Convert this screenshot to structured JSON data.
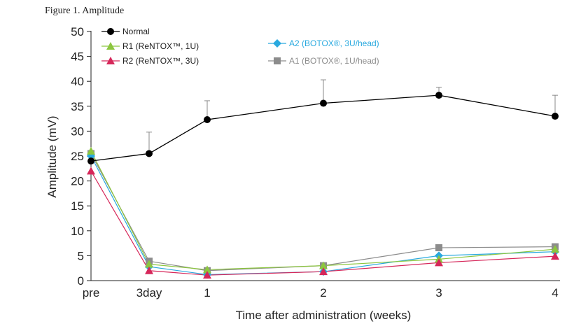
{
  "figure_title": "Figure 1. Amplitude",
  "chart_data": {
    "type": "line",
    "title": "",
    "xlabel": "Time after administration (weeks)",
    "ylabel": "Amplitude (mV)",
    "categories": [
      "pre",
      "3day",
      "1",
      "2",
      "3",
      "4"
    ],
    "ylim": [
      0,
      50
    ],
    "yticks": [
      0,
      5,
      10,
      15,
      20,
      25,
      30,
      35,
      40,
      45,
      50
    ],
    "grid": false,
    "series": [
      {
        "name": "Normal",
        "color": "#000000",
        "marker": "circle",
        "values": [
          24,
          25.5,
          32.3,
          35.6,
          37.2,
          33
        ],
        "error_upper": [
          null,
          4.3,
          3.8,
          4.7,
          1.6,
          4.2
        ]
      },
      {
        "name": "R1 (ReNTOX™, 1U)",
        "color": "#8cc63f",
        "marker": "triangle",
        "values": [
          26,
          3.3,
          2.2,
          3,
          4.3,
          6.3
        ]
      },
      {
        "name": "R2 (ReNTOX™, 3U)",
        "color": "#d6275a",
        "marker": "triangle",
        "values": [
          22,
          2,
          1.1,
          1.8,
          3.6,
          4.9
        ]
      },
      {
        "name": "A2 (BOTOX®, 3U/head)",
        "color": "#29a9df",
        "marker": "diamond",
        "values": [
          25,
          2.8,
          1.2,
          1.8,
          5,
          5.8
        ]
      },
      {
        "name": "A1 (BOTOX®, 1U/head)",
        "color": "#8c8c8c",
        "marker": "square",
        "values": [
          25.5,
          3.9,
          2,
          3,
          6.6,
          6.8
        ]
      }
    ]
  }
}
